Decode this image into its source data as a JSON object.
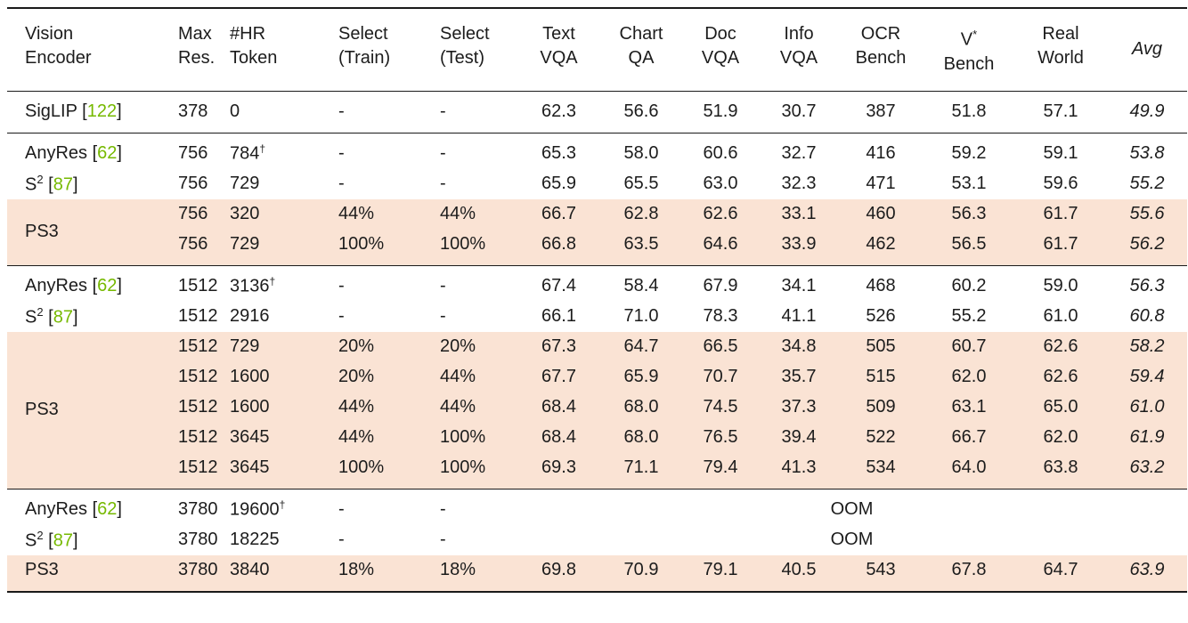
{
  "colors": {
    "highlight_row": "#fae3d4",
    "citation_green": "#76b900",
    "rule": "#1a1a1a",
    "text": "#1c1c1c",
    "background": "#ffffff"
  },
  "symbols": {
    "dagger": "†",
    "dash": "-"
  },
  "table": {
    "oom_label": "OOM",
    "columns": [
      {
        "line1": "Vision",
        "line2": "Encoder"
      },
      {
        "line1": "Max",
        "line2": "Res."
      },
      {
        "line1": "#HR",
        "line2": "Token"
      },
      {
        "line1": "Select",
        "line2": "(Train)"
      },
      {
        "line1": "Select",
        "line2": "(Test)"
      },
      {
        "line1": "Text",
        "line2": "VQA"
      },
      {
        "line1": "Chart",
        "line2": "QA"
      },
      {
        "line1": "Doc",
        "line2": "VQA"
      },
      {
        "line1": "Info",
        "line2": "VQA"
      },
      {
        "line1": "OCR",
        "line2": "Bench"
      },
      {
        "line1": "V",
        "line1_sup": "*",
        "line2": "Bench"
      },
      {
        "line1": "Real",
        "line2": "World"
      },
      {
        "line1": "Avg",
        "line2": ""
      }
    ],
    "groups": [
      {
        "rows": [
          {
            "encoder": {
              "name": "SigLIP",
              "sup": "",
              "cite": "122",
              "rowspan": 1
            },
            "highlight": false,
            "oom": false,
            "cells": {
              "max_res": "378",
              "hr_token": "0",
              "hr_dagger": false,
              "select_train": "-",
              "select_test": "-",
              "text_vqa": "62.3",
              "chart_qa": "56.6",
              "doc_vqa": "51.9",
              "info_vqa": "30.7",
              "ocr_bench": "387",
              "v_bench": "51.8",
              "real_world": "57.1",
              "avg": "49.9"
            }
          }
        ]
      },
      {
        "rows": [
          {
            "encoder": {
              "name": "AnyRes",
              "sup": "",
              "cite": "62",
              "rowspan": 1
            },
            "highlight": false,
            "oom": false,
            "cells": {
              "max_res": "756",
              "hr_token": "784",
              "hr_dagger": true,
              "select_train": "-",
              "select_test": "-",
              "text_vqa": "65.3",
              "chart_qa": "58.0",
              "doc_vqa": "60.6",
              "info_vqa": "32.7",
              "ocr_bench": "416",
              "v_bench": "59.2",
              "real_world": "59.1",
              "avg": "53.8"
            }
          },
          {
            "encoder": {
              "name": "S",
              "sup": "2",
              "cite": "87",
              "rowspan": 1
            },
            "highlight": false,
            "oom": false,
            "cells": {
              "max_res": "756",
              "hr_token": "729",
              "hr_dagger": false,
              "select_train": "-",
              "select_test": "-",
              "text_vqa": "65.9",
              "chart_qa": "65.5",
              "doc_vqa": "63.0",
              "info_vqa": "32.3",
              "ocr_bench": "471",
              "v_bench": "53.1",
              "real_world": "59.6",
              "avg": "55.2"
            }
          },
          {
            "encoder": {
              "name": "PS3",
              "sup": "",
              "cite": "",
              "rowspan": 2
            },
            "highlight": true,
            "oom": false,
            "cells": {
              "max_res": "756",
              "hr_token": "320",
              "hr_dagger": false,
              "select_train": "44%",
              "select_test": "44%",
              "text_vqa": "66.7",
              "chart_qa": "62.8",
              "doc_vqa": "62.6",
              "info_vqa": "33.1",
              "ocr_bench": "460",
              "v_bench": "56.3",
              "real_world": "61.7",
              "avg": "55.6"
            }
          },
          {
            "encoder": null,
            "highlight": true,
            "oom": false,
            "cells": {
              "max_res": "756",
              "hr_token": "729",
              "hr_dagger": false,
              "select_train": "100%",
              "select_test": "100%",
              "text_vqa": "66.8",
              "chart_qa": "63.5",
              "doc_vqa": "64.6",
              "info_vqa": "33.9",
              "ocr_bench": "462",
              "v_bench": "56.5",
              "real_world": "61.7",
              "avg": "56.2"
            }
          }
        ]
      },
      {
        "rows": [
          {
            "encoder": {
              "name": "AnyRes",
              "sup": "",
              "cite": "62",
              "rowspan": 1
            },
            "highlight": false,
            "oom": false,
            "cells": {
              "max_res": "1512",
              "hr_token": "3136",
              "hr_dagger": true,
              "select_train": "-",
              "select_test": "-",
              "text_vqa": "67.4",
              "chart_qa": "58.4",
              "doc_vqa": "67.9",
              "info_vqa": "34.1",
              "ocr_bench": "468",
              "v_bench": "60.2",
              "real_world": "59.0",
              "avg": "56.3"
            }
          },
          {
            "encoder": {
              "name": "S",
              "sup": "2",
              "cite": "87",
              "rowspan": 1
            },
            "highlight": false,
            "oom": false,
            "cells": {
              "max_res": "1512",
              "hr_token": "2916",
              "hr_dagger": false,
              "select_train": "-",
              "select_test": "-",
              "text_vqa": "66.1",
              "chart_qa": "71.0",
              "doc_vqa": "78.3",
              "info_vqa": "41.1",
              "ocr_bench": "526",
              "v_bench": "55.2",
              "real_world": "61.0",
              "avg": "60.8"
            }
          },
          {
            "encoder": {
              "name": "PS3",
              "sup": "",
              "cite": "",
              "rowspan": 5
            },
            "highlight": true,
            "oom": false,
            "cells": {
              "max_res": "1512",
              "hr_token": "729",
              "hr_dagger": false,
              "select_train": "20%",
              "select_test": "20%",
              "text_vqa": "67.3",
              "chart_qa": "64.7",
              "doc_vqa": "66.5",
              "info_vqa": "34.8",
              "ocr_bench": "505",
              "v_bench": "60.7",
              "real_world": "62.6",
              "avg": "58.2"
            }
          },
          {
            "encoder": null,
            "highlight": true,
            "oom": false,
            "cells": {
              "max_res": "1512",
              "hr_token": "1600",
              "hr_dagger": false,
              "select_train": "20%",
              "select_test": "44%",
              "text_vqa": "67.7",
              "chart_qa": "65.9",
              "doc_vqa": "70.7",
              "info_vqa": "35.7",
              "ocr_bench": "515",
              "v_bench": "62.0",
              "real_world": "62.6",
              "avg": "59.4"
            }
          },
          {
            "encoder": null,
            "highlight": true,
            "oom": false,
            "cells": {
              "max_res": "1512",
              "hr_token": "1600",
              "hr_dagger": false,
              "select_train": "44%",
              "select_test": "44%",
              "text_vqa": "68.4",
              "chart_qa": "68.0",
              "doc_vqa": "74.5",
              "info_vqa": "37.3",
              "ocr_bench": "509",
              "v_bench": "63.1",
              "real_world": "65.0",
              "avg": "61.0"
            }
          },
          {
            "encoder": null,
            "highlight": true,
            "oom": false,
            "cells": {
              "max_res": "1512",
              "hr_token": "3645",
              "hr_dagger": false,
              "select_train": "44%",
              "select_test": "100%",
              "text_vqa": "68.4",
              "chart_qa": "68.0",
              "doc_vqa": "76.5",
              "info_vqa": "39.4",
              "ocr_bench": "522",
              "v_bench": "66.7",
              "real_world": "62.0",
              "avg": "61.9"
            }
          },
          {
            "encoder": null,
            "highlight": true,
            "oom": false,
            "cells": {
              "max_res": "1512",
              "hr_token": "3645",
              "hr_dagger": false,
              "select_train": "100%",
              "select_test": "100%",
              "text_vqa": "69.3",
              "chart_qa": "71.1",
              "doc_vqa": "79.4",
              "info_vqa": "41.3",
              "ocr_bench": "534",
              "v_bench": "64.0",
              "real_world": "63.8",
              "avg": "63.2"
            }
          }
        ]
      },
      {
        "rows": [
          {
            "encoder": {
              "name": "AnyRes",
              "sup": "",
              "cite": "62",
              "rowspan": 1
            },
            "highlight": false,
            "oom": true,
            "cells": {
              "max_res": "3780",
              "hr_token": "19600",
              "hr_dagger": true,
              "select_train": "-",
              "select_test": "-"
            }
          },
          {
            "encoder": {
              "name": "S",
              "sup": "2",
              "cite": "87",
              "rowspan": 1
            },
            "highlight": false,
            "oom": true,
            "cells": {
              "max_res": "3780",
              "hr_token": "18225",
              "hr_dagger": false,
              "select_train": "-",
              "select_test": "-"
            }
          },
          {
            "encoder": {
              "name": "PS3",
              "sup": "",
              "cite": "",
              "rowspan": 1
            },
            "highlight": true,
            "oom": false,
            "cells": {
              "max_res": "3780",
              "hr_token": "3840",
              "hr_dagger": false,
              "select_train": "18%",
              "select_test": "18%",
              "text_vqa": "69.8",
              "chart_qa": "70.9",
              "doc_vqa": "79.1",
              "info_vqa": "40.5",
              "ocr_bench": "543",
              "v_bench": "67.8",
              "real_world": "64.7",
              "avg": "63.9"
            }
          }
        ]
      }
    ]
  }
}
